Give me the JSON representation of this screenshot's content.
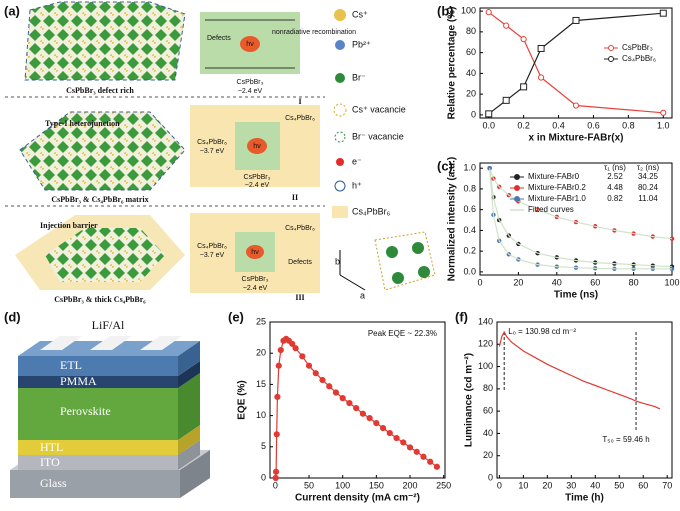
{
  "diagram_a": {
    "label": "(a)",
    "panel_I": {
      "caption": "CsPbBr₃ defect rich",
      "numeral": "I",
      "band": "CsPbBr₃",
      "gap": "~2.4 eV",
      "defects": "Defects",
      "recombination": "nonradiative recombination",
      "photon": "hν"
    },
    "panel_II": {
      "junction": "Type-I heterojunction",
      "caption": "CsPbBr₃ & Cs₄PbBr₆ matrix",
      "numeral": "II",
      "shell": "Cs₄PbBr₆",
      "shell_band": "Cs₄PbBr₆",
      "shell_gap": "~3.7 eV",
      "band": "CsPbBr₃",
      "gap": "~2.4 eV",
      "photon": "hν"
    },
    "panel_III": {
      "barrier": "Injection barrier",
      "caption": "CsPbBr₃ & thick Cs₄PbBr₆",
      "numeral": "III",
      "shell": "Cs₄PbBr₆",
      "shell_band": "Cs₄PbBr₆",
      "shell_gap": "~3.7 eV",
      "band": "CsPbBr₃",
      "gap": "~2.4 eV",
      "defects": "Defects",
      "photon": "hν"
    },
    "legend": [
      "Cs⁺",
      "Pb²⁺",
      "Br⁻",
      "Cs⁺ vacancie",
      "Br⁻ vacancie",
      "e⁻",
      "h⁺",
      "Cs₄PbBr₆"
    ],
    "axes": [
      "b",
      "a"
    ]
  },
  "diagram_d": {
    "label": "(d)",
    "layers": [
      "LiF/Al",
      "ETL",
      "PMMA",
      "Perovskite",
      "HTL",
      "ITO",
      "Glass"
    ]
  },
  "chart_data": [
    {
      "type": "line",
      "label": "(b)",
      "x_label": "x in Mixture-FABr(x)",
      "y_label": "Relative percentage (%)",
      "x": [
        0,
        0.1,
        0.2,
        0.3,
        0.5,
        1.0
      ],
      "series": [
        {
          "name": "CsPbBr₃",
          "color": "#e8413a",
          "marker": "circle",
          "values": [
            99,
            86,
            73,
            36,
            9,
            2
          ]
        },
        {
          "name": "Cs₄PbBr₆",
          "color": "#222222",
          "marker": "square",
          "values": [
            1,
            14,
            27,
            64,
            91,
            98
          ]
        }
      ],
      "xlim": [
        -0.05,
        1.05
      ],
      "xticks": [
        {
          "value": 0,
          "label": "0.0"
        },
        0.2,
        0.4,
        0.6,
        0.8,
        {
          "value": 1,
          "label": "1.0"
        }
      ],
      "ylim": [
        -3,
        103
      ],
      "yticks": [
        0,
        20,
        40,
        60,
        80,
        100
      ],
      "legend": "center right"
    },
    {
      "type": "line",
      "label": "(c)",
      "x_label": "Time (ns)",
      "y_label": "Normalized intensity (a.u.)",
      "x": [
        5,
        7,
        10,
        15,
        20,
        30,
        40,
        50,
        60,
        70,
        80,
        90,
        100
      ],
      "series": [
        {
          "name": "Mixture-FABr0",
          "color": "#222222",
          "marker": "dot",
          "values": [
            1.0,
            0.72,
            0.5,
            0.35,
            0.27,
            0.18,
            0.14,
            0.11,
            0.09,
            0.08,
            0.07,
            0.06,
            0.05
          ]
        },
        {
          "name": "Mixture-FABr0.2",
          "color": "#e03030",
          "marker": "dot",
          "values": [
            1.0,
            0.9,
            0.82,
            0.74,
            0.68,
            0.6,
            0.53,
            0.48,
            0.44,
            0.4,
            0.37,
            0.34,
            0.32
          ]
        },
        {
          "name": "Mixture-FABr1.0",
          "color": "#4a78b0",
          "marker": "dot",
          "values": [
            1.0,
            0.55,
            0.3,
            0.17,
            0.12,
            0.07,
            0.05,
            0.04,
            0.035,
            0.03,
            0.03,
            0.03,
            0.03
          ]
        }
      ],
      "fit_label": "Fitted curves",
      "fit_color": "#cfe3c8",
      "legend_table": {
        "headers": [
          "τ₁ (ns)",
          "τ₂ (ns)"
        ],
        "rows": [
          [
            "2.52",
            "34.25"
          ],
          [
            "4.48",
            "80.24"
          ],
          [
            "0.82",
            "11.04"
          ]
        ]
      },
      "xlim": [
        0,
        100
      ],
      "xticks": [
        0,
        20,
        40,
        60,
        80,
        100
      ],
      "ylim": [
        -0.03,
        1.05
      ],
      "yticks": [
        {
          "value": 0,
          "label": "0.0"
        },
        0.2,
        0.4,
        0.6,
        0.8,
        {
          "value": 1,
          "label": "1.0"
        }
      ],
      "legend": "upper right"
    },
    {
      "type": "line",
      "label": "(e)",
      "x_label": "Current density (mA cm⁻²)",
      "y_label": "EQE (%)",
      "annotation": "Peak EQE ~ 22.3%",
      "x": [
        0.5,
        1,
        2,
        3,
        5,
        8,
        12,
        16,
        20,
        25,
        30,
        40,
        50,
        60,
        70,
        80,
        90,
        100,
        110,
        120,
        130,
        140,
        150,
        160,
        170,
        180,
        190,
        200,
        210,
        220,
        230,
        240
      ],
      "series": [
        {
          "color": "#e03a32",
          "marker": "circle",
          "values": [
            0,
            1,
            7,
            13,
            18,
            20.5,
            22,
            22.3,
            22,
            21.5,
            20.8,
            19.5,
            18,
            16.8,
            15.7,
            14.7,
            13.7,
            12.8,
            12,
            11.2,
            10.3,
            9.6,
            8.8,
            8,
            7.2,
            6.4,
            5.7,
            4.9,
            4.2,
            3.4,
            2.6,
            1.8
          ]
        }
      ],
      "xlim": [
        -8,
        252
      ],
      "xticks": [
        0,
        50,
        100,
        150,
        200,
        250
      ],
      "ylim": [
        0,
        25
      ],
      "yticks": [
        0,
        5,
        10,
        15,
        20,
        25
      ]
    },
    {
      "type": "line",
      "label": "(f)",
      "x_label": "Time (h)",
      "y_label": "Luminance (cd m⁻²)",
      "annotations": [
        "L₀ = 130.98 cd m⁻²",
        "T₅₀ = 59.46 h"
      ],
      "reference_lines_x": [
        2,
        57
      ],
      "x": [
        0,
        1,
        2,
        3,
        5,
        10,
        15,
        20,
        25,
        30,
        35,
        40,
        45,
        50,
        55,
        57,
        60,
        65,
        67
      ],
      "series": [
        {
          "color": "#e03a32",
          "marker": "none",
          "values": [
            118,
            127,
            131,
            127,
            122,
            114,
            108,
            102,
            97,
            92,
            87,
            83,
            79,
            75,
            71,
            69,
            67,
            64,
            62
          ]
        }
      ],
      "xlim": [
        -1,
        72
      ],
      "xticks": [
        0,
        10,
        20,
        30,
        40,
        50,
        60,
        70
      ],
      "ylim": [
        0,
        140
      ],
      "yticks": [
        0,
        20,
        40,
        60,
        80,
        100,
        120,
        140
      ]
    }
  ]
}
